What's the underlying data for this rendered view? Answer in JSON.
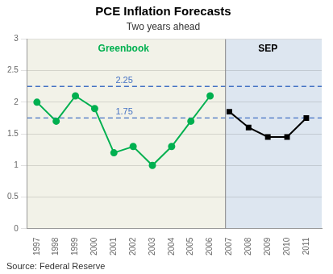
{
  "chart_data": {
    "type": "line",
    "title": "PCE Inflation Forecasts",
    "subtitle": "Two years ahead",
    "source": "Source: Federal Reserve",
    "series": [
      {
        "name": "Greenbook",
        "color": "#00b050",
        "marker": "circle",
        "x": [
          1997,
          1998,
          1999,
          2000,
          2001,
          2002,
          2003,
          2004,
          2005,
          2006
        ],
        "values": [
          2.0,
          1.7,
          2.1,
          1.9,
          1.2,
          1.3,
          1.0,
          1.3,
          1.7,
          2.1
        ]
      },
      {
        "name": "SEP",
        "color": "#000000",
        "marker": "square",
        "x": [
          2007,
          2008,
          2009,
          2010,
          2011
        ],
        "values": [
          1.85,
          1.6,
          1.45,
          1.45,
          1.75
        ]
      }
    ],
    "xlim": [
      1996.5,
      2011.8
    ],
    "xticks": [
      1997,
      1998,
      1999,
      2000,
      2001,
      2002,
      2003,
      2004,
      2005,
      2006,
      2007,
      2008,
      2009,
      2010,
      2011
    ],
    "ylim": [
      0,
      3.0
    ],
    "yticks": [
      0,
      0.5,
      1,
      1.5,
      2,
      2.5,
      3
    ],
    "grid": "y",
    "annotations": [
      {
        "type": "span",
        "x": [
          1996.5,
          2006.8
        ],
        "color": "#f2f2e8"
      },
      {
        "type": "span",
        "x": [
          2006.8,
          2011.8
        ],
        "color": "#dde6f0"
      },
      {
        "type": "hline",
        "y": 2.25,
        "label": "2.25",
        "color": "#4472c4",
        "line_style": "dashed"
      },
      {
        "type": "hline",
        "y": 1.75,
        "label": "1.75",
        "color": "#4472c4",
        "line_style": "dashed"
      },
      {
        "type": "vline",
        "x": 2006.8,
        "color": "#888888"
      }
    ]
  }
}
